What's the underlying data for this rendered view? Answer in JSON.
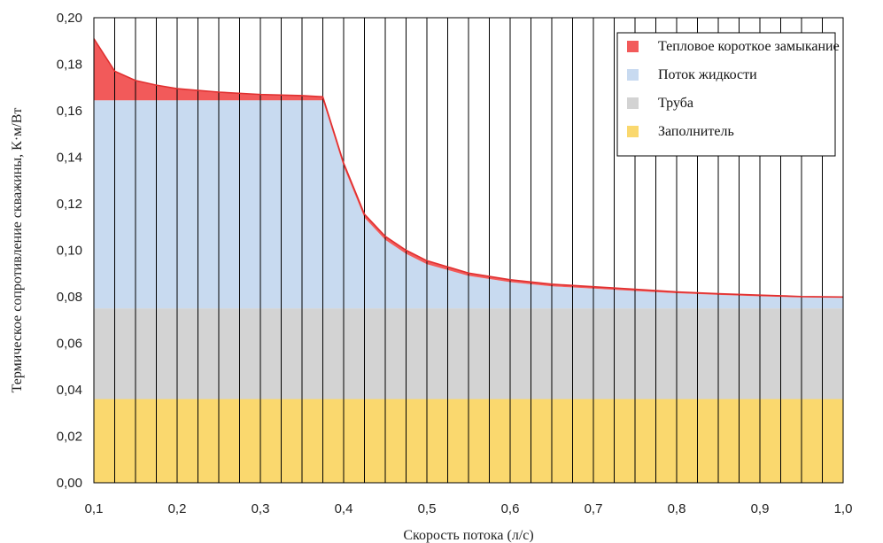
{
  "chart_data": {
    "type": "area",
    "xlabel": "Скорость потока (л/с)",
    "ylabel": "Термическое сопротивление скважины, К·м/Вт",
    "xlim": [
      0.1,
      1.0
    ],
    "ylim": [
      0.0,
      0.2
    ],
    "x_ticks": [
      "0,1",
      "0,2",
      "0,3",
      "0,4",
      "0,5",
      "0,6",
      "0,7",
      "0,8",
      "0,9",
      "1,0"
    ],
    "y_ticks": [
      "0,00",
      "0,02",
      "0,04",
      "0,06",
      "0,08",
      "0,10",
      "0,12",
      "0,14",
      "0,16",
      "0,18",
      "0,20"
    ],
    "grid": "vertical",
    "legend_position": "top-right",
    "stacked": true,
    "x": [
      0.1,
      0.125,
      0.15,
      0.175,
      0.2,
      0.25,
      0.3,
      0.35,
      0.375,
      0.4,
      0.425,
      0.45,
      0.475,
      0.5,
      0.55,
      0.6,
      0.65,
      0.7,
      0.75,
      0.8,
      0.85,
      0.9,
      0.95,
      1.0
    ],
    "series": [
      {
        "name": "Заполнитель",
        "color": "#fad86e",
        "values": [
          0.036,
          0.036,
          0.036,
          0.036,
          0.036,
          0.036,
          0.036,
          0.036,
          0.036,
          0.036,
          0.036,
          0.036,
          0.036,
          0.036,
          0.036,
          0.036,
          0.036,
          0.036,
          0.036,
          0.036,
          0.036,
          0.036,
          0.036,
          0.036
        ]
      },
      {
        "name": "Труба",
        "color": "#d3d3d3",
        "values": [
          0.039,
          0.039,
          0.039,
          0.039,
          0.039,
          0.039,
          0.039,
          0.039,
          0.039,
          0.039,
          0.039,
          0.039,
          0.039,
          0.039,
          0.039,
          0.039,
          0.039,
          0.039,
          0.039,
          0.039,
          0.039,
          0.039,
          0.039,
          0.039
        ]
      },
      {
        "name": "Поток жидкости",
        "color": "#c8daf0",
        "values": [
          0.0895,
          0.0895,
          0.0895,
          0.0895,
          0.0895,
          0.0895,
          0.0895,
          0.0895,
          0.0895,
          0.061,
          0.039,
          0.0295,
          0.0235,
          0.019,
          0.014,
          0.0113,
          0.0095,
          0.0085,
          0.0075,
          0.0065,
          0.0058,
          0.0052,
          0.0047,
          0.0045
        ]
      },
      {
        "name": "Тепловое короткое замыкание",
        "color": "#f25a5a",
        "values": [
          0.0265,
          0.0125,
          0.0085,
          0.0065,
          0.005,
          0.0035,
          0.0025,
          0.002,
          0.0015,
          0.0015,
          0.0015,
          0.0015,
          0.0015,
          0.0015,
          0.0012,
          0.001,
          0.0009,
          0.0008,
          0.0007,
          0.0006,
          0.0005,
          0.0005,
          0.0004,
          0.0004
        ]
      }
    ]
  }
}
